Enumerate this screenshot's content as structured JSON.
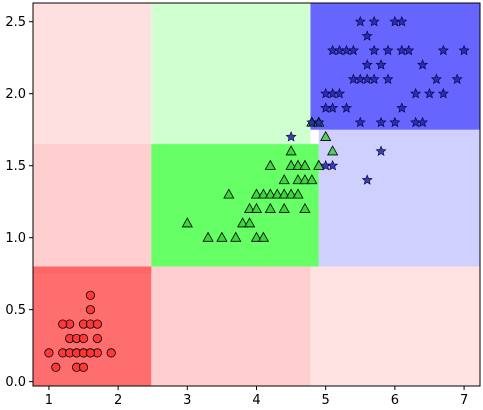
{
  "chart_data": {
    "type": "scatter",
    "title": "",
    "xlabel": "",
    "ylabel": "",
    "xlim": [
      0.77,
      7.23
    ],
    "ylim": [
      -0.03,
      2.63
    ],
    "xticks": [
      1,
      2,
      3,
      4,
      5,
      6,
      7
    ],
    "yticks": [
      0.0,
      0.5,
      1.0,
      1.5,
      2.0,
      2.5
    ],
    "xtick_labels": [
      "1",
      "2",
      "3",
      "4",
      "5",
      "6",
      "7"
    ],
    "ytick_labels": [
      "0.0",
      "0.5",
      "1.0",
      "1.5",
      "2.0",
      "2.5"
    ],
    "grid": false,
    "regions": [
      {
        "x0": 0.77,
        "x1": 2.48,
        "y0": 0.75,
        "y1": 2.63,
        "color": "#ffbbbb",
        "opacity": 0.45
      },
      {
        "x0": 0.77,
        "x1": 2.48,
        "y0": 0.75,
        "y1": 1.65,
        "color": "#ffbbbb",
        "opacity": 0.45
      },
      {
        "x0": 0.77,
        "x1": 2.48,
        "y0": -0.03,
        "y1": 0.8,
        "color": "#ff5555",
        "opacity": 0.85
      },
      {
        "x0": 2.48,
        "x1": 4.78,
        "y0": -0.03,
        "y1": 0.8,
        "color": "#ffbbbb",
        "opacity": 0.7
      },
      {
        "x0": 4.78,
        "x1": 7.23,
        "y0": -0.03,
        "y1": 0.8,
        "color": "#ffcccc",
        "opacity": 0.55
      },
      {
        "x0": 2.48,
        "x1": 4.78,
        "y0": 1.65,
        "y1": 2.63,
        "color": "#c8ffc8",
        "opacity": 0.85
      },
      {
        "x0": 2.48,
        "x1": 4.9,
        "y0": 0.8,
        "y1": 1.65,
        "color": "#55ff55",
        "opacity": 0.9
      },
      {
        "x0": 4.9,
        "x1": 7.23,
        "y0": 0.8,
        "y1": 1.75,
        "color": "#c8c8ff",
        "opacity": 0.85
      },
      {
        "x0": 4.78,
        "x1": 7.23,
        "y0": 1.75,
        "y1": 2.63,
        "color": "#5555ff",
        "opacity": 0.9
      }
    ],
    "series": [
      {
        "marker": "circle",
        "color": "#ff3333",
        "points": [
          [
            1.0,
            0.2
          ],
          [
            1.1,
            0.1
          ],
          [
            1.2,
            0.2
          ],
          [
            1.3,
            0.2
          ],
          [
            1.4,
            0.2
          ],
          [
            1.5,
            0.2
          ],
          [
            1.6,
            0.2
          ],
          [
            1.7,
            0.2
          ],
          [
            1.9,
            0.2
          ],
          [
            1.3,
            0.3
          ],
          [
            1.4,
            0.3
          ],
          [
            1.5,
            0.3
          ],
          [
            1.3,
            0.4
          ],
          [
            1.5,
            0.4
          ],
          [
            1.6,
            0.4
          ],
          [
            1.7,
            0.4
          ],
          [
            1.6,
            0.5
          ],
          [
            1.6,
            0.6
          ],
          [
            1.4,
            0.1
          ],
          [
            1.5,
            0.1
          ],
          [
            1.2,
            0.4
          ],
          [
            1.7,
            0.3
          ],
          [
            1.4,
            0.2
          ],
          [
            1.5,
            0.2
          ],
          [
            1.6,
            0.2
          ]
        ]
      },
      {
        "marker": "triangle",
        "color": "#33cc33",
        "points": [
          [
            3.0,
            1.1
          ],
          [
            3.3,
            1.0
          ],
          [
            3.5,
            1.0
          ],
          [
            3.6,
            1.3
          ],
          [
            3.7,
            1.0
          ],
          [
            3.8,
            1.1
          ],
          [
            3.9,
            1.1
          ],
          [
            3.9,
            1.2
          ],
          [
            4.0,
            1.0
          ],
          [
            4.0,
            1.2
          ],
          [
            4.0,
            1.3
          ],
          [
            4.1,
            1.0
          ],
          [
            4.1,
            1.3
          ],
          [
            4.2,
            1.2
          ],
          [
            4.2,
            1.3
          ],
          [
            4.3,
            1.3
          ],
          [
            4.4,
            1.2
          ],
          [
            4.4,
            1.3
          ],
          [
            4.4,
            1.4
          ],
          [
            4.5,
            1.3
          ],
          [
            4.5,
            1.5
          ],
          [
            4.6,
            1.3
          ],
          [
            4.6,
            1.4
          ],
          [
            4.5,
            1.6
          ],
          [
            4.7,
            1.2
          ],
          [
            4.7,
            1.4
          ],
          [
            4.8,
            1.4
          ],
          [
            4.9,
            1.5
          ],
          [
            5.0,
            1.7
          ],
          [
            5.1,
            1.6
          ],
          [
            4.6,
            1.5
          ],
          [
            4.7,
            1.5
          ],
          [
            4.8,
            1.8
          ],
          [
            4.9,
            1.8
          ],
          [
            4.2,
            1.5
          ]
        ]
      },
      {
        "marker": "star",
        "color": "#2222aa",
        "points": [
          [
            4.5,
            1.7
          ],
          [
            4.8,
            1.8
          ],
          [
            4.9,
            1.8
          ],
          [
            5.0,
            1.5
          ],
          [
            5.0,
            2.0
          ],
          [
            5.1,
            1.5
          ],
          [
            5.1,
            1.9
          ],
          [
            5.1,
            2.0
          ],
          [
            5.1,
            2.3
          ],
          [
            5.2,
            2.3
          ],
          [
            5.3,
            2.3
          ],
          [
            5.4,
            2.1
          ],
          [
            5.5,
            1.8
          ],
          [
            5.5,
            2.1
          ],
          [
            5.6,
            1.4
          ],
          [
            5.6,
            2.1
          ],
          [
            5.6,
            2.4
          ],
          [
            5.7,
            2.1
          ],
          [
            5.7,
            2.3
          ],
          [
            5.7,
            2.5
          ],
          [
            5.8,
            1.6
          ],
          [
            5.8,
            1.8
          ],
          [
            5.8,
            2.2
          ],
          [
            5.9,
            2.1
          ],
          [
            5.9,
            2.3
          ],
          [
            6.0,
            1.8
          ],
          [
            6.0,
            2.5
          ],
          [
            6.1,
            1.9
          ],
          [
            6.1,
            2.3
          ],
          [
            6.1,
            2.5
          ],
          [
            6.3,
            1.8
          ],
          [
            6.3,
            2.0
          ],
          [
            6.4,
            1.8
          ],
          [
            6.4,
            2.2
          ],
          [
            6.6,
            2.1
          ],
          [
            6.7,
            2.0
          ],
          [
            6.7,
            2.3
          ],
          [
            6.9,
            2.1
          ],
          [
            7.0,
            2.3
          ],
          [
            5.0,
            1.9
          ],
          [
            5.2,
            2.0
          ],
          [
            5.3,
            1.9
          ],
          [
            5.5,
            2.5
          ],
          [
            5.4,
            2.3
          ],
          [
            5.6,
            2.2
          ],
          [
            6.2,
            2.3
          ],
          [
            6.5,
            2.0
          ]
        ]
      }
    ]
  }
}
